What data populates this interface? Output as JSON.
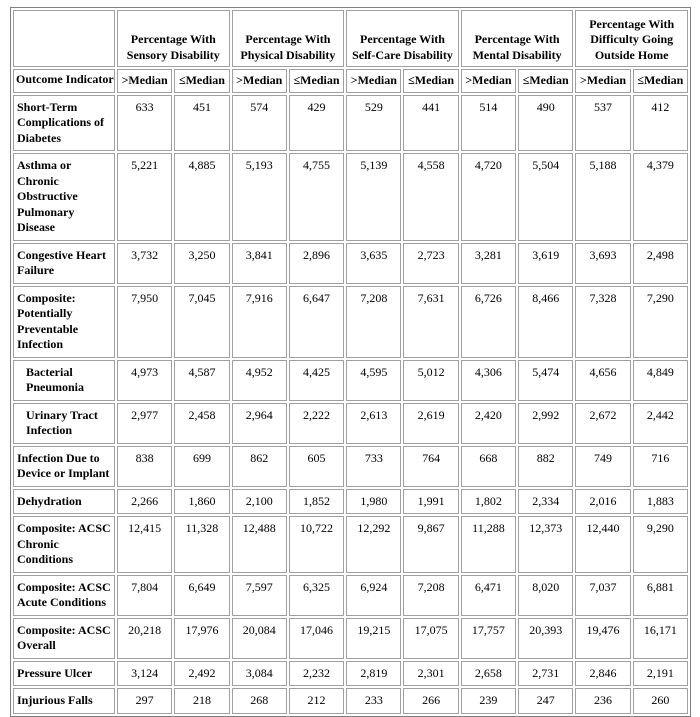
{
  "table": {
    "groups": [
      "Percentage With Sensory Disability",
      "Percentage With Physical Disability",
      "Percentage With Self-Care Disability",
      "Percentage With Mental Disability",
      "Percentage With Difficulty Going Outside Home"
    ],
    "corner": "Outcome Indicator",
    "subheaders": [
      ">Median",
      "≤Median",
      ">Median",
      "≤Median",
      ">Median",
      "≤Median",
      ">Median",
      "≤Median",
      ">Median",
      "≤Median"
    ],
    "rows": [
      {
        "label": "Short-Term Complications of Diabetes",
        "cells": [
          "633",
          "451",
          "574",
          "429",
          "529",
          "441",
          "514",
          "490",
          "537",
          "412"
        ]
      },
      {
        "label": "Asthma or Chronic Obstructive Pulmonary Disease",
        "cells": [
          "5,221",
          "4,885",
          "5,193",
          "4,755",
          "5,139",
          "4,558",
          "4,720",
          "5,504",
          "5,188",
          "4,379"
        ]
      },
      {
        "label": "Congestive Heart Failure",
        "cells": [
          "3,732",
          "3,250",
          "3,841",
          "2,896",
          "3,635",
          "2,723",
          "3,281",
          "3,619",
          "3,693",
          "2,498"
        ]
      },
      {
        "label": "Composite: Potentially Preventable Infection",
        "cells": [
          "7,950",
          "7,045",
          "7,916",
          "6,647",
          "7,208",
          "7,631",
          "6,726",
          "8,466",
          "7,328",
          "7,290"
        ]
      },
      {
        "label": "Bacterial Pneumonia",
        "indented": true,
        "cells": [
          "4,973",
          "4,587",
          "4,952",
          "4,425",
          "4,595",
          "5,012",
          "4,306",
          "5,474",
          "4,656",
          "4,849"
        ]
      },
      {
        "label": "Urinary Tract Infection",
        "indented": true,
        "cells": [
          "2,977",
          "2,458",
          "2,964",
          "2,222",
          "2,613",
          "2,619",
          "2,420",
          "2,992",
          "2,672",
          "2,442"
        ]
      },
      {
        "label": "Infection Due to Device or Implant",
        "cells": [
          "838",
          "699",
          "862",
          "605",
          "733",
          "764",
          "668",
          "882",
          "749",
          "716"
        ]
      },
      {
        "label": "Dehydration",
        "cells": [
          "2,266",
          "1,860",
          "2,100",
          "1,852",
          "1,980",
          "1,991",
          "1,802",
          "2,334",
          "2,016",
          "1,883"
        ]
      },
      {
        "label": "Composite: ACSC Chronic Conditions",
        "cells": [
          "12,415",
          "11,328",
          "12,488",
          "10,722",
          "12,292",
          "9,867",
          "11,288",
          "12,373",
          "12,440",
          "9,290"
        ]
      },
      {
        "label": "Composite: ACSC Acute Conditions",
        "cells": [
          "7,804",
          "6,649",
          "7,597",
          "6,325",
          "6,924",
          "7,208",
          "6,471",
          "8,020",
          "7,037",
          "6,881"
        ]
      },
      {
        "label": "Composite: ACSC Overall",
        "cells": [
          "20,218",
          "17,976",
          "20,084",
          "17,046",
          "19,215",
          "17,075",
          "17,757",
          "20,393",
          "19,476",
          "16,171"
        ]
      },
      {
        "label": "Pressure Ulcer",
        "cells": [
          "3,124",
          "2,492",
          "3,084",
          "2,232",
          "2,819",
          "2,301",
          "2,658",
          "2,731",
          "2,846",
          "2,191"
        ]
      },
      {
        "label": "Injurious Falls",
        "cells": [
          "297",
          "218",
          "268",
          "212",
          "233",
          "266",
          "239",
          "247",
          "236",
          "260"
        ]
      }
    ]
  }
}
